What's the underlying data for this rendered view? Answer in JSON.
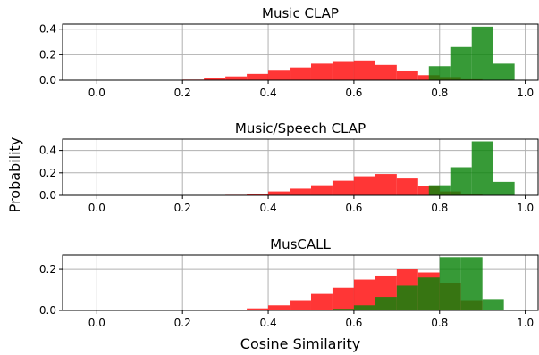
{
  "figure": {
    "xlabel": "Cosine Similarity",
    "ylabel": "Probability"
  },
  "chart_data": [
    {
      "type": "bar",
      "title": "Music CLAP",
      "xlim": [
        -0.08,
        1.03
      ],
      "ylim": [
        0,
        0.44
      ],
      "xticks": [
        0.0,
        0.2,
        0.4,
        0.6,
        0.8,
        1.0
      ],
      "xtick_labels": [
        "0.0",
        "0.2",
        "0.4",
        "0.6",
        "0.8",
        "1.0"
      ],
      "yticks": [
        0.0,
        0.2,
        0.4
      ],
      "ytick_labels": [
        "0.0",
        "0.2",
        "0.4"
      ],
      "grid": true,
      "series": [
        {
          "color": "#ff2020",
          "alpha": 0.9,
          "bins": [
            {
              "x0": 0.2,
              "x1": 0.25,
              "value": 0.005
            },
            {
              "x0": 0.25,
              "x1": 0.3,
              "value": 0.015
            },
            {
              "x0": 0.3,
              "x1": 0.35,
              "value": 0.03
            },
            {
              "x0": 0.35,
              "x1": 0.4,
              "value": 0.05
            },
            {
              "x0": 0.4,
              "x1": 0.45,
              "value": 0.075
            },
            {
              "x0": 0.45,
              "x1": 0.5,
              "value": 0.1
            },
            {
              "x0": 0.5,
              "x1": 0.55,
              "value": 0.13
            },
            {
              "x0": 0.55,
              "x1": 0.6,
              "value": 0.15
            },
            {
              "x0": 0.6,
              "x1": 0.65,
              "value": 0.155
            },
            {
              "x0": 0.65,
              "x1": 0.7,
              "value": 0.12
            },
            {
              "x0": 0.7,
              "x1": 0.75,
              "value": 0.07
            },
            {
              "x0": 0.75,
              "x1": 0.8,
              "value": 0.04
            },
            {
              "x0": 0.8,
              "x1": 0.85,
              "value": 0.025
            },
            {
              "x0": 0.85,
              "x1": 0.9,
              "value": 0.008
            }
          ]
        },
        {
          "color": "#0b840b",
          "alpha": 0.82,
          "bins": [
            {
              "x0": 0.775,
              "x1": 0.825,
              "value": 0.11
            },
            {
              "x0": 0.825,
              "x1": 0.875,
              "value": 0.26
            },
            {
              "x0": 0.875,
              "x1": 0.925,
              "value": 0.42
            },
            {
              "x0": 0.925,
              "x1": 0.975,
              "value": 0.13
            }
          ]
        }
      ]
    },
    {
      "type": "bar",
      "title": "Music/Speech CLAP",
      "xlim": [
        -0.08,
        1.03
      ],
      "ylim": [
        0,
        0.5
      ],
      "xticks": [
        0.0,
        0.2,
        0.4,
        0.6,
        0.8,
        1.0
      ],
      "xtick_labels": [
        "0.0",
        "0.2",
        "0.4",
        "0.6",
        "0.8",
        "1.0"
      ],
      "yticks": [
        0.0,
        0.2,
        0.4
      ],
      "ytick_labels": [
        "0.0",
        "0.2",
        "0.4"
      ],
      "grid": true,
      "series": [
        {
          "color": "#ff2020",
          "alpha": 0.9,
          "bins": [
            {
              "x0": 0.3,
              "x1": 0.35,
              "value": 0.005
            },
            {
              "x0": 0.35,
              "x1": 0.4,
              "value": 0.015
            },
            {
              "x0": 0.4,
              "x1": 0.45,
              "value": 0.035
            },
            {
              "x0": 0.45,
              "x1": 0.5,
              "value": 0.06
            },
            {
              "x0": 0.5,
              "x1": 0.55,
              "value": 0.09
            },
            {
              "x0": 0.55,
              "x1": 0.6,
              "value": 0.13
            },
            {
              "x0": 0.6,
              "x1": 0.65,
              "value": 0.17
            },
            {
              "x0": 0.65,
              "x1": 0.7,
              "value": 0.19
            },
            {
              "x0": 0.7,
              "x1": 0.75,
              "value": 0.15
            },
            {
              "x0": 0.75,
              "x1": 0.8,
              "value": 0.08
            },
            {
              "x0": 0.8,
              "x1": 0.85,
              "value": 0.035
            },
            {
              "x0": 0.85,
              "x1": 0.9,
              "value": 0.01
            }
          ]
        },
        {
          "color": "#0b840b",
          "alpha": 0.82,
          "bins": [
            {
              "x0": 0.775,
              "x1": 0.825,
              "value": 0.09
            },
            {
              "x0": 0.825,
              "x1": 0.875,
              "value": 0.25
            },
            {
              "x0": 0.875,
              "x1": 0.925,
              "value": 0.48
            },
            {
              "x0": 0.925,
              "x1": 0.975,
              "value": 0.12
            }
          ]
        }
      ]
    },
    {
      "type": "bar",
      "title": "MusCALL",
      "xlim": [
        -0.08,
        1.03
      ],
      "ylim": [
        0,
        0.27
      ],
      "xticks": [
        0.0,
        0.2,
        0.4,
        0.6,
        0.8,
        1.0
      ],
      "xtick_labels": [
        "0.0",
        "0.2",
        "0.4",
        "0.6",
        "0.8",
        "1.0"
      ],
      "yticks": [
        0.0,
        0.2
      ],
      "ytick_labels": [
        "0.0",
        "0.2"
      ],
      "grid": true,
      "series": [
        {
          "color": "#ff2020",
          "alpha": 0.9,
          "bins": [
            {
              "x0": 0.3,
              "x1": 0.35,
              "value": 0.004
            },
            {
              "x0": 0.35,
              "x1": 0.4,
              "value": 0.01
            },
            {
              "x0": 0.4,
              "x1": 0.45,
              "value": 0.025
            },
            {
              "x0": 0.45,
              "x1": 0.5,
              "value": 0.05
            },
            {
              "x0": 0.5,
              "x1": 0.55,
              "value": 0.08
            },
            {
              "x0": 0.55,
              "x1": 0.6,
              "value": 0.11
            },
            {
              "x0": 0.6,
              "x1": 0.65,
              "value": 0.15
            },
            {
              "x0": 0.65,
              "x1": 0.7,
              "value": 0.17
            },
            {
              "x0": 0.7,
              "x1": 0.75,
              "value": 0.2
            },
            {
              "x0": 0.75,
              "x1": 0.8,
              "value": 0.185
            },
            {
              "x0": 0.8,
              "x1": 0.85,
              "value": 0.135
            },
            {
              "x0": 0.85,
              "x1": 0.9,
              "value": 0.05
            }
          ]
        },
        {
          "color": "#0b840b",
          "alpha": 0.82,
          "bins": [
            {
              "x0": 0.55,
              "x1": 0.6,
              "value": 0.008
            },
            {
              "x0": 0.6,
              "x1": 0.65,
              "value": 0.025
            },
            {
              "x0": 0.65,
              "x1": 0.7,
              "value": 0.065
            },
            {
              "x0": 0.7,
              "x1": 0.75,
              "value": 0.12
            },
            {
              "x0": 0.75,
              "x1": 0.8,
              "value": 0.16
            },
            {
              "x0": 0.8,
              "x1": 0.85,
              "value": 0.26
            },
            {
              "x0": 0.85,
              "x1": 0.9,
              "value": 0.26
            },
            {
              "x0": 0.9,
              "x1": 0.95,
              "value": 0.055
            }
          ]
        }
      ]
    }
  ]
}
